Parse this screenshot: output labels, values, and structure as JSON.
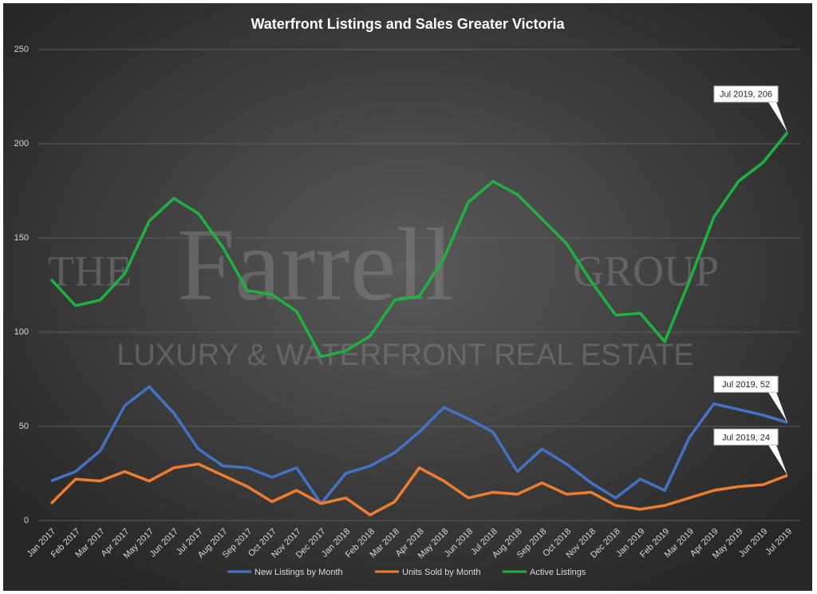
{
  "chart_data": {
    "type": "line",
    "title": "Waterfront Listings and Sales Greater Victoria",
    "watermark": [
      "THE",
      "Farrell",
      "GROUP",
      "LUXURY & WATERFRONT REAL ESTATE"
    ],
    "categories": [
      "Jan 2017",
      "Feb 2017",
      "Mar 2017",
      "Apr 2017",
      "May 2017",
      "Jun 2017",
      "Jul 2017",
      "Aug 2017",
      "Sep 2017",
      "Oct 2017",
      "Nov 2017",
      "Dec 2017",
      "Jan 2018",
      "Feb 2018",
      "Mar 2018",
      "Apr 2018",
      "May 2018",
      "Jun 2018",
      "Jul 2018",
      "Aug 2018",
      "Sep 2018",
      "Oct 2018",
      "Nov 2018",
      "Dec 2018",
      "Jan 2019",
      "Feb 2019",
      "Mar 2019",
      "Apr 2019",
      "May 2019",
      "Jun 2019",
      "Jul 2019"
    ],
    "series": [
      {
        "name": "New Listings by Month",
        "color": "#4472c4",
        "values": [
          21,
          26,
          37,
          61,
          71,
          57,
          38,
          29,
          28,
          23,
          28,
          9,
          25,
          29,
          36,
          47,
          60,
          54,
          47,
          26,
          38,
          30,
          20,
          12,
          22,
          16,
          44,
          62,
          59,
          56,
          52
        ],
        "value_labels": [
          null,
          null,
          null,
          null,
          null,
          null,
          null,
          null,
          null,
          null,
          null,
          null,
          null,
          null,
          null,
          null,
          null,
          null,
          null,
          null,
          null,
          null,
          null,
          null,
          null,
          null,
          null,
          null,
          null,
          null,
          "Jul 2019, 52"
        ]
      },
      {
        "name": "Units Sold by Month",
        "color": "#ed7d31",
        "values": [
          9,
          22,
          21,
          26,
          21,
          28,
          30,
          24,
          18,
          10,
          16,
          9,
          12,
          3,
          10,
          28,
          21,
          12,
          15,
          14,
          20,
          14,
          15,
          8,
          6,
          8,
          12,
          16,
          18,
          19,
          24
        ],
        "value_labels": [
          null,
          null,
          null,
          null,
          null,
          null,
          null,
          null,
          null,
          null,
          null,
          null,
          null,
          null,
          null,
          null,
          null,
          null,
          null,
          null,
          null,
          null,
          null,
          null,
          null,
          null,
          null,
          null,
          null,
          null,
          "Jul 2019, 24"
        ]
      },
      {
        "name": "Active Listings",
        "color": "#1fb142",
        "values": [
          128,
          114,
          117,
          131,
          159,
          171,
          163,
          145,
          122,
          120,
          111,
          87,
          90,
          98,
          117,
          119,
          139,
          169,
          180,
          173,
          160,
          147,
          127,
          109,
          110,
          95,
          127,
          161,
          180,
          190,
          206
        ],
        "value_labels": [
          null,
          null,
          null,
          null,
          null,
          null,
          null,
          null,
          null,
          null,
          null,
          null,
          null,
          null,
          null,
          null,
          null,
          null,
          null,
          null,
          null,
          null,
          null,
          null,
          null,
          null,
          null,
          null,
          null,
          null,
          "Jul 2019, 206"
        ]
      }
    ],
    "ylim": [
      0,
      250
    ],
    "yticks": [
      0,
      50,
      100,
      150,
      200,
      250
    ],
    "grid": true,
    "legend": "bottom"
  }
}
